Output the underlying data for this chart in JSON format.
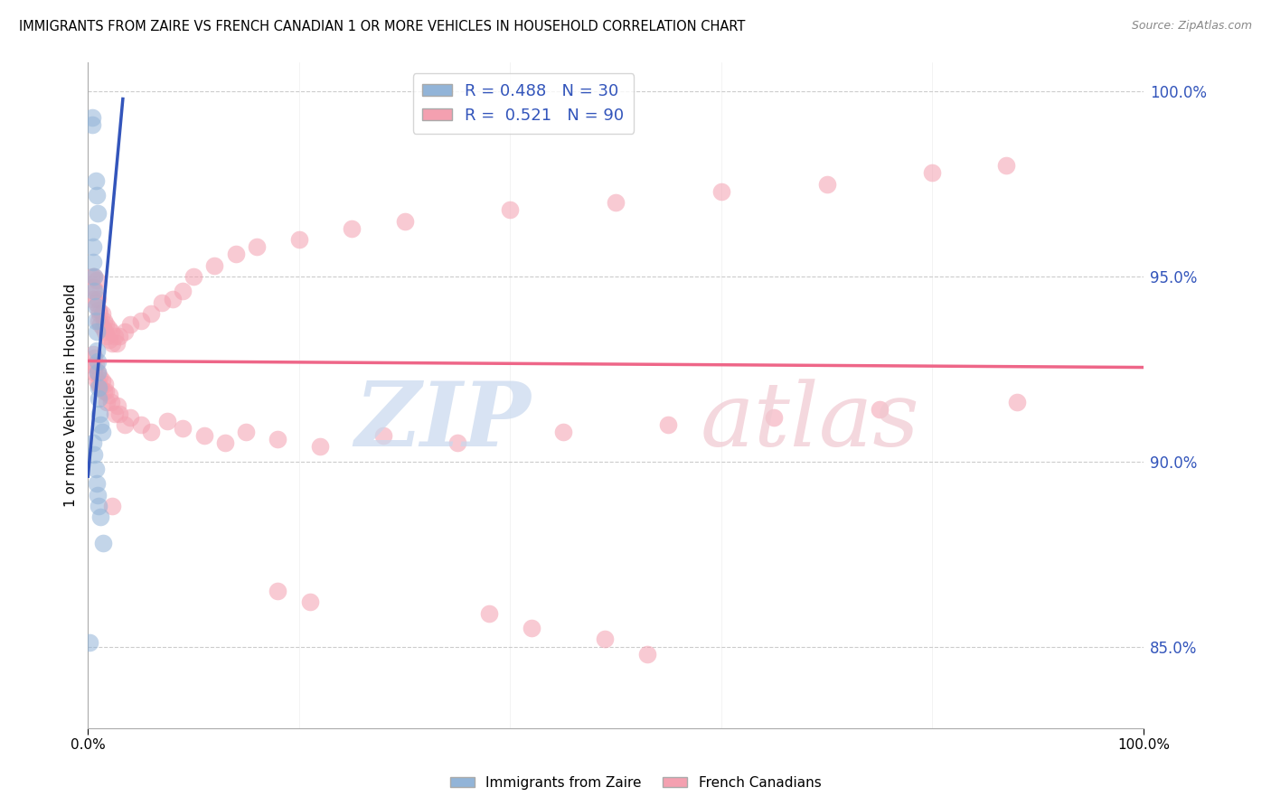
{
  "title": "IMMIGRANTS FROM ZAIRE VS FRENCH CANADIAN 1 OR MORE VEHICLES IN HOUSEHOLD CORRELATION CHART",
  "source": "Source: ZipAtlas.com",
  "ylabel": "1 or more Vehicles in Household",
  "ytick_values": [
    0.85,
    0.9,
    0.95,
    1.0
  ],
  "legend_label1": "Immigrants from Zaire",
  "legend_label2": "French Canadians",
  "R_blue": "0.488",
  "N_blue": "30",
  "R_pink": "0.521",
  "N_pink": "90",
  "color_blue": "#92B4D8",
  "color_pink": "#F4A0B0",
  "line_color_blue": "#3355BB",
  "line_color_pink": "#EE6688",
  "background_color": "#FFFFFF",
  "grid_color": "#CCCCCC",
  "blue_x": [
    0.004,
    0.004,
    0.007,
    0.008,
    0.009,
    0.004,
    0.005,
    0.005,
    0.006,
    0.006,
    0.007,
    0.007,
    0.008,
    0.008,
    0.009,
    0.009,
    0.01,
    0.01,
    0.011,
    0.012,
    0.013,
    0.005,
    0.006,
    0.007,
    0.008,
    0.009,
    0.01,
    0.012,
    0.014,
    0.001
  ],
  "blue_y": [
    0.993,
    0.991,
    0.976,
    0.972,
    0.967,
    0.962,
    0.958,
    0.954,
    0.95,
    0.946,
    0.942,
    0.938,
    0.935,
    0.93,
    0.927,
    0.924,
    0.92,
    0.917,
    0.913,
    0.91,
    0.908,
    0.905,
    0.902,
    0.898,
    0.894,
    0.891,
    0.888,
    0.885,
    0.878,
    0.851
  ],
  "pink_x": [
    0.004,
    0.005,
    0.005,
    0.006,
    0.007,
    0.007,
    0.008,
    0.009,
    0.01,
    0.01,
    0.011,
    0.012,
    0.013,
    0.014,
    0.015,
    0.016,
    0.017,
    0.018,
    0.019,
    0.02,
    0.022,
    0.023,
    0.025,
    0.027,
    0.03,
    0.035,
    0.04,
    0.05,
    0.06,
    0.07,
    0.08,
    0.09,
    0.1,
    0.12,
    0.14,
    0.16,
    0.2,
    0.25,
    0.3,
    0.4,
    0.5,
    0.6,
    0.7,
    0.8,
    0.87,
    0.005,
    0.005,
    0.006,
    0.006,
    0.007,
    0.008,
    0.009,
    0.01,
    0.011,
    0.012,
    0.013,
    0.015,
    0.016,
    0.017,
    0.018,
    0.02,
    0.022,
    0.025,
    0.028,
    0.03,
    0.035,
    0.04,
    0.05,
    0.06,
    0.075,
    0.09,
    0.11,
    0.13,
    0.15,
    0.18,
    0.22,
    0.28,
    0.35,
    0.45,
    0.55,
    0.65,
    0.75,
    0.88,
    0.023,
    0.18,
    0.21,
    0.38,
    0.42,
    0.49,
    0.53
  ],
  "pink_y": [
    0.95,
    0.947,
    0.944,
    0.95,
    0.946,
    0.943,
    0.949,
    0.944,
    0.941,
    0.938,
    0.94,
    0.937,
    0.94,
    0.936,
    0.938,
    0.935,
    0.937,
    0.934,
    0.936,
    0.933,
    0.935,
    0.932,
    0.934,
    0.932,
    0.934,
    0.935,
    0.937,
    0.938,
    0.94,
    0.943,
    0.944,
    0.946,
    0.95,
    0.953,
    0.956,
    0.958,
    0.96,
    0.963,
    0.965,
    0.968,
    0.97,
    0.973,
    0.975,
    0.978,
    0.98,
    0.929,
    0.926,
    0.928,
    0.924,
    0.926,
    0.922,
    0.924,
    0.921,
    0.923,
    0.92,
    0.922,
    0.919,
    0.921,
    0.919,
    0.916,
    0.918,
    0.916,
    0.913,
    0.915,
    0.913,
    0.91,
    0.912,
    0.91,
    0.908,
    0.911,
    0.909,
    0.907,
    0.905,
    0.908,
    0.906,
    0.904,
    0.907,
    0.905,
    0.908,
    0.91,
    0.912,
    0.914,
    0.916,
    0.888,
    0.865,
    0.862,
    0.859,
    0.855,
    0.852,
    0.848
  ]
}
